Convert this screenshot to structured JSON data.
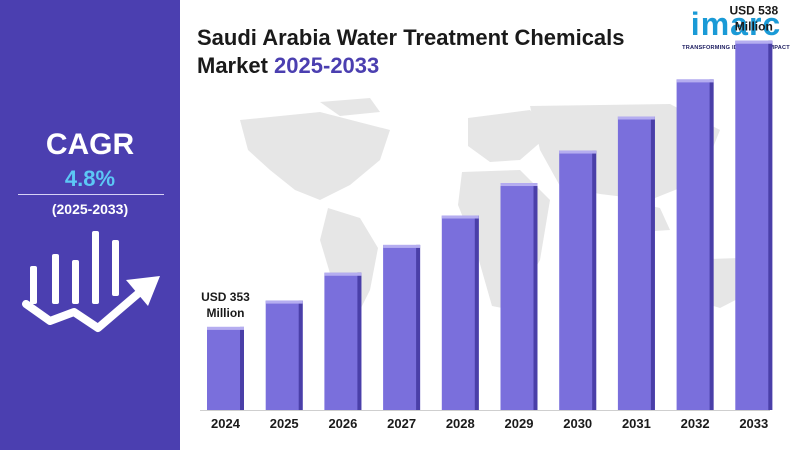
{
  "colors": {
    "panel": "#4b3fb0",
    "cagr_value": "#5cc8f5",
    "bar": "#7a6fdc",
    "bar_top": "#b5adf0",
    "bar_side": "#4a3fa8",
    "logo": "#1a9ad6",
    "map": "#e6e6e6"
  },
  "header": {
    "title_main": "Saudi Arabia Water Treatment Chemicals",
    "title_line2": "Market ",
    "title_years": "2025-2033"
  },
  "logo": {
    "word": "imarc",
    "tagline": "TRANSFORMING IDEAS INTO IMPACT"
  },
  "sidebar": {
    "cagr_label": "CAGR",
    "cagr_value": "4.8%",
    "period": "(2025-2033)",
    "icon": "growth-chart-icon"
  },
  "background": {
    "icon": "world-map"
  },
  "chart_data": {
    "type": "bar",
    "categories": [
      "2024",
      "2025",
      "2026",
      "2027",
      "2028",
      "2029",
      "2030",
      "2031",
      "2032",
      "2033"
    ],
    "values": [
      353,
      370,
      388,
      406,
      425,
      446,
      467,
      489,
      513,
      538
    ],
    "unit": "USD Million",
    "annotations": [
      {
        "category": "2024",
        "lines": [
          "USD 353",
          "Million"
        ]
      },
      {
        "category": "2033",
        "lines": [
          "USD 538",
          "Million"
        ]
      }
    ],
    "ylim": [
      0,
      560
    ],
    "grid": false,
    "legend": "none"
  }
}
